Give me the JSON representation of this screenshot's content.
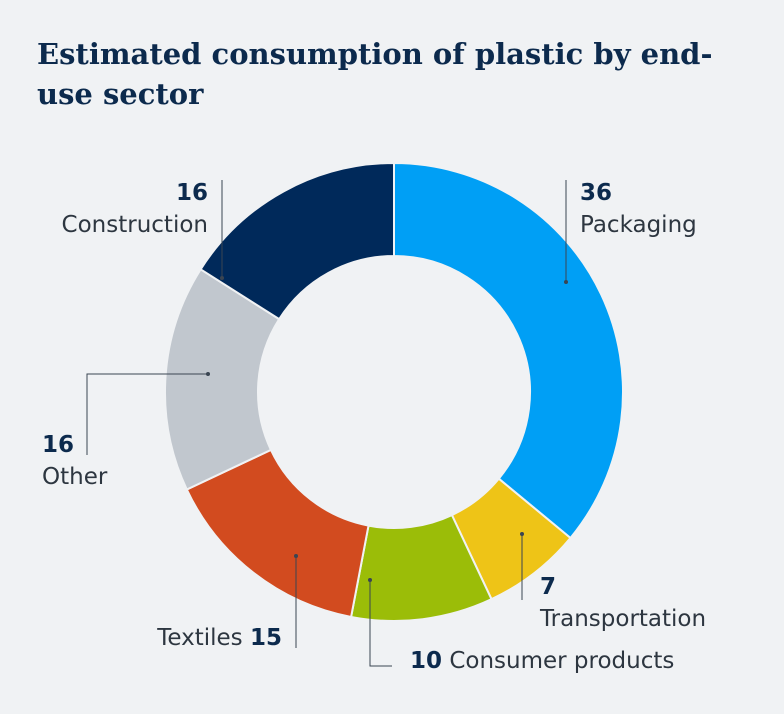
{
  "title": "Estimated consumption of plastic by end-use sector",
  "chart_data": {
    "type": "pie",
    "title": "Estimated consumption of plastic by end-use sector",
    "donut": true,
    "slices": [
      {
        "label": "Packaging",
        "value": 36,
        "color": "#009ff5"
      },
      {
        "label": "Transportation",
        "value": 7,
        "color": "#eec417"
      },
      {
        "label": "Consumer products",
        "value": 10,
        "color": "#9bbd08"
      },
      {
        "label": "Textiles",
        "value": 15,
        "color": "#d24b1f"
      },
      {
        "label": "Other",
        "value": 16,
        "color": "#c1c7ce"
      },
      {
        "label": "Construction",
        "value": 16,
        "color": "#00295a"
      }
    ]
  }
}
